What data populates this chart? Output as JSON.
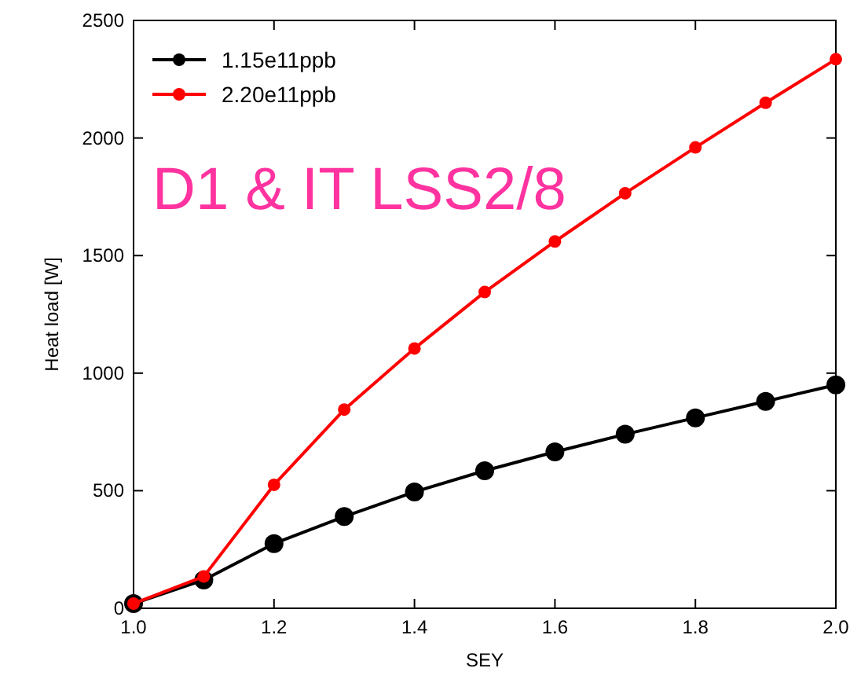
{
  "chart_data": {
    "type": "line",
    "xlabel": "SEY",
    "ylabel": "Heat load [W]",
    "annotations": [
      "D1 & IT LSS2/8"
    ],
    "x": [
      1.0,
      1.1,
      1.2,
      1.3,
      1.4,
      1.5,
      1.6,
      1.7,
      1.8,
      1.9,
      2.0
    ],
    "series": [
      {
        "name": "1.15e11ppb",
        "color": "#000000",
        "values": [
          20,
          120,
          275,
          390,
          495,
          585,
          665,
          740,
          810,
          880,
          950
        ]
      },
      {
        "name": "2.20e11ppb",
        "color": "#ff0000",
        "values": [
          20,
          135,
          525,
          845,
          1105,
          1345,
          1560,
          1765,
          1960,
          2150,
          2335
        ]
      }
    ],
    "xlim": [
      1.0,
      2.0
    ],
    "xticks": [
      {
        "value": 1.0,
        "label": "1.0"
      },
      {
        "value": 1.2,
        "label": "1.2"
      },
      {
        "value": 1.4,
        "label": "1.4"
      },
      {
        "value": 1.6,
        "label": "1.6"
      },
      {
        "value": 1.8,
        "label": "1.8"
      },
      {
        "value": 2.0,
        "label": "2.0"
      }
    ],
    "ylim": [
      0,
      2500
    ],
    "yticks": [
      0,
      500,
      1000,
      1500,
      2000,
      2500
    ],
    "grid": false,
    "legend": "top left",
    "marker": "circle",
    "line_style": "solid"
  }
}
